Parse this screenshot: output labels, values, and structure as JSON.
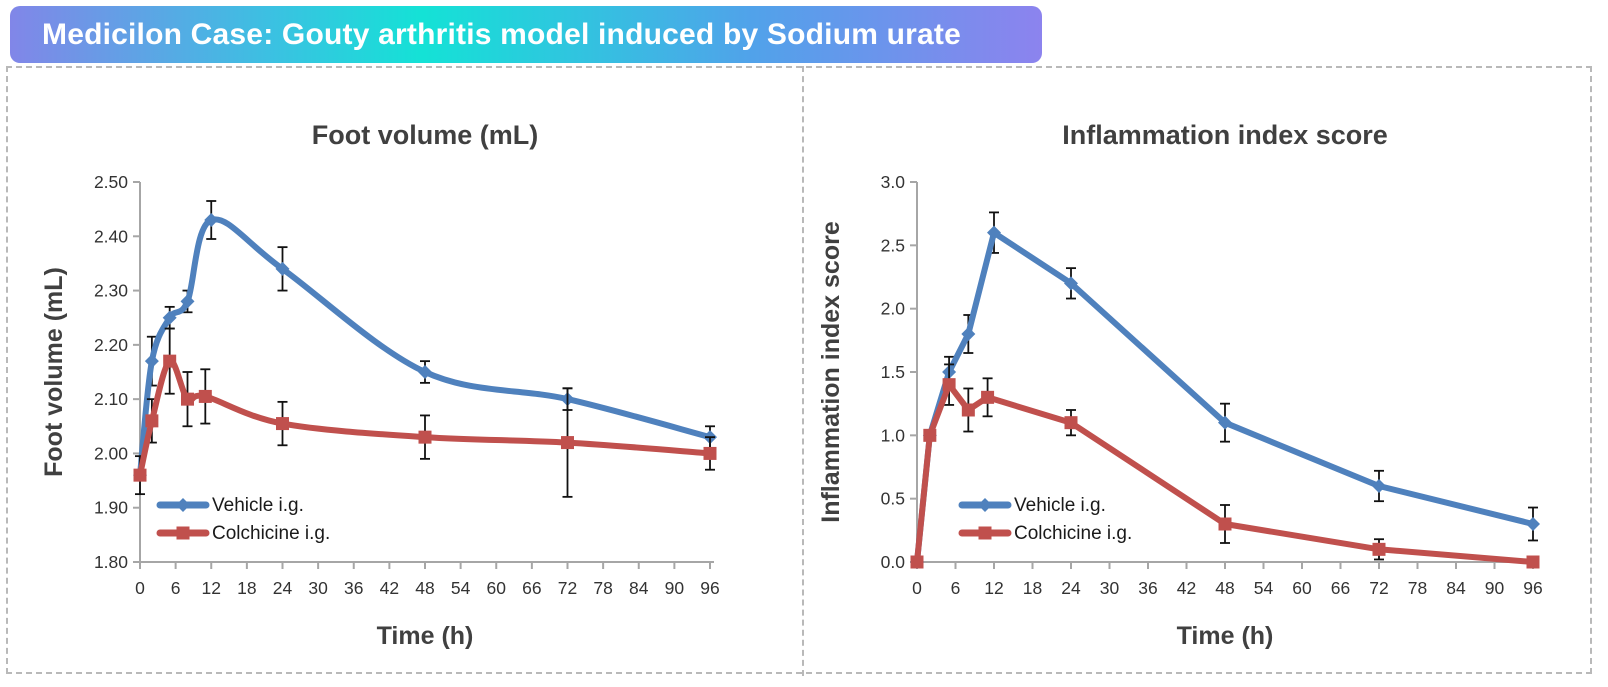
{
  "banner": {
    "title": "Medicilon Case: Gouty arthritis model induced by Sodium urate",
    "gradient_colors": [
      "#8186e8",
      "#14e2d6",
      "#8c83ee"
    ],
    "text_color": "#ffffff"
  },
  "colors": {
    "vehicle_series": "#4F81BD",
    "colchicine_series": "#C0504D",
    "axis": "#a6a6a6",
    "error_bar": "#111111",
    "title_text": "#404040",
    "tick_text": "#333333",
    "legend_text": "#1a1a1a",
    "frame_dash": "#b9b9b9"
  },
  "chart_data": [
    {
      "type": "line",
      "title": "Foot volume (mL)",
      "xlabel": "Time (h)",
      "ylabel": "Foot volume (mL)",
      "xlim": [
        0,
        96
      ],
      "ylim": [
        1.8,
        2.5
      ],
      "xticks": [
        "0",
        "6",
        "12",
        "18",
        "24",
        "30",
        "36",
        "42",
        "48",
        "54",
        "60",
        "66",
        "72",
        "78",
        "84",
        "90",
        "96"
      ],
      "xtick_values": [
        0,
        6,
        12,
        18,
        24,
        30,
        36,
        42,
        48,
        54,
        60,
        66,
        72,
        78,
        84,
        90,
        96
      ],
      "ytick_labels": [
        "1.80",
        "1.90",
        "2.00",
        "2.10",
        "2.20",
        "2.30",
        "2.40",
        "2.50"
      ],
      "ytick_values": [
        1.8,
        1.9,
        2.0,
        2.1,
        2.2,
        2.3,
        2.4,
        2.5
      ],
      "grid": false,
      "smooth": true,
      "legend_position": "inside-bottom-left",
      "series": [
        {
          "name": "Vehicle i.g.",
          "color": "#4F81BD",
          "marker": "diamond",
          "x": [
            0,
            2,
            5,
            8,
            12,
            24,
            48,
            72,
            96
          ],
          "y": [
            1.96,
            2.17,
            2.25,
            2.28,
            2.43,
            2.34,
            2.15,
            2.1,
            2.03
          ],
          "err": [
            0,
            0.045,
            0.02,
            0.02,
            0.035,
            0.04,
            0.02,
            0.02,
            0.02
          ]
        },
        {
          "name": "Colchicine i.g.",
          "color": "#C0504D",
          "marker": "square",
          "x": [
            0,
            2,
            5,
            8,
            11,
            24,
            48,
            72,
            96
          ],
          "y": [
            1.96,
            2.06,
            2.17,
            2.1,
            2.105,
            2.055,
            2.03,
            2.02,
            2.0
          ],
          "err": [
            0.035,
            0.04,
            0.06,
            0.05,
            0.05,
            0.04,
            0.04,
            0.1,
            0.03
          ]
        }
      ]
    },
    {
      "type": "line",
      "title": "Inflammation index score",
      "xlabel": "Time (h)",
      "ylabel": "Inflammation index score",
      "xlim": [
        0,
        96
      ],
      "ylim": [
        0.0,
        3.0
      ],
      "xticks": [
        "0",
        "6",
        "12",
        "18",
        "24",
        "30",
        "36",
        "42",
        "48",
        "54",
        "60",
        "66",
        "72",
        "78",
        "84",
        "90",
        "96"
      ],
      "xtick_values": [
        0,
        6,
        12,
        18,
        24,
        30,
        36,
        42,
        48,
        54,
        60,
        66,
        72,
        78,
        84,
        90,
        96
      ],
      "ytick_labels": [
        "0.0",
        "0.5",
        "1.0",
        "1.5",
        "2.0",
        "2.5",
        "3.0"
      ],
      "ytick_values": [
        0.0,
        0.5,
        1.0,
        1.5,
        2.0,
        2.5,
        3.0
      ],
      "grid": false,
      "smooth": false,
      "legend_position": "inside-bottom-left",
      "series": [
        {
          "name": "Vehicle i.g.",
          "color": "#4F81BD",
          "marker": "diamond",
          "x": [
            0,
            2,
            5,
            8,
            12,
            24,
            48,
            72,
            96
          ],
          "y": [
            0.0,
            1.0,
            1.5,
            1.8,
            2.6,
            2.2,
            1.1,
            0.6,
            0.3
          ],
          "err": [
            0,
            0,
            0.12,
            0.15,
            0.16,
            0.12,
            0.15,
            0.12,
            0.13
          ]
        },
        {
          "name": "Colchicine i.g.",
          "color": "#C0504D",
          "marker": "square",
          "x": [
            0,
            2,
            5,
            8,
            11,
            24,
            48,
            72,
            96
          ],
          "y": [
            0.0,
            1.0,
            1.4,
            1.2,
            1.3,
            1.1,
            0.3,
            0.1,
            0.0
          ],
          "err": [
            0,
            0,
            0.16,
            0.17,
            0.15,
            0.1,
            0.15,
            0.08,
            0
          ]
        }
      ]
    }
  ]
}
